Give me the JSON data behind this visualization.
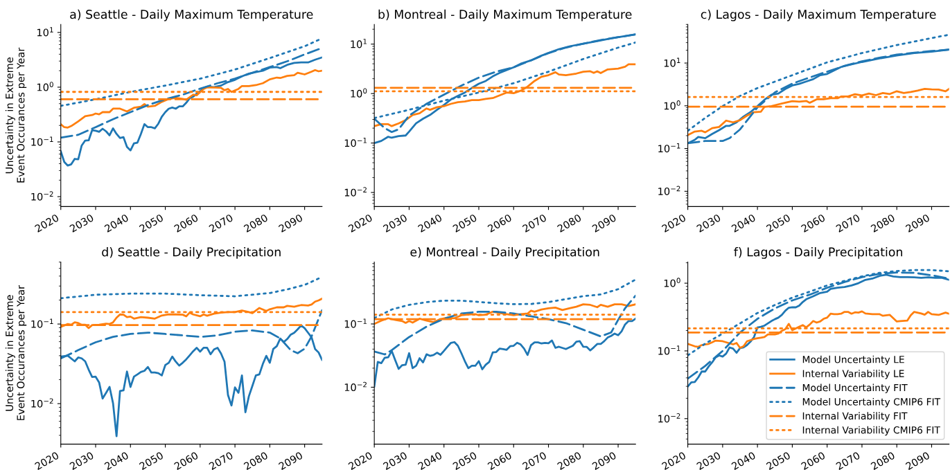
{
  "chart_data": [
    {
      "type": "line",
      "title": "a) Seattle - Daily Maximum Temperature",
      "ylabel": "Uncertainty in Extreme\nEvent Occurances per Year",
      "log": true,
      "xlim": [
        2020,
        2095
      ],
      "xticks": [
        2020,
        2030,
        2040,
        2050,
        2060,
        2070,
        2080,
        2090
      ],
      "ylim": [
        0.0066,
        14
      ],
      "yticks": [
        {
          "value": 0.01,
          "label": "10$^{−2}$"
        },
        {
          "value": 0.1,
          "label": "10$^{−1}$"
        },
        {
          "value": 1,
          "label": "10$^{0}$"
        },
        {
          "value": 10,
          "label": "10$^{1}$"
        }
      ],
      "series": [
        {
          "color": "#1f77b4",
          "line_style": "solid",
          "x": [
            2020,
            2021,
            2022,
            2023,
            2024,
            2025,
            2026,
            2027,
            2028,
            2029,
            2030,
            2031,
            2032,
            2033,
            2034,
            2035,
            2036,
            2037,
            2038,
            2039,
            2040,
            2041,
            2042,
            2043,
            2044,
            2045,
            2046,
            2047,
            2048,
            2049,
            2050,
            2051,
            2052,
            2053,
            2054,
            2055,
            2056,
            2057,
            2058,
            2059,
            2060,
            2061,
            2062,
            2064,
            2066,
            2068,
            2070,
            2072,
            2074,
            2076,
            2078,
            2080,
            2082,
            2083,
            2085,
            2087,
            2089,
            2091,
            2093,
            2095
          ],
          "values": [
            0.067,
            0.043,
            0.037,
            0.039,
            0.049,
            0.048,
            0.086,
            0.106,
            0.107,
            0.164,
            0.16,
            0.153,
            0.174,
            0.156,
            0.132,
            0.177,
            0.14,
            0.118,
            0.122,
            0.081,
            0.07,
            0.094,
            0.097,
            0.14,
            0.211,
            0.186,
            0.186,
            0.177,
            0.215,
            0.288,
            0.35,
            0.405,
            0.425,
            0.405,
            0.446,
            0.446,
            0.517,
            0.63,
            0.67,
            0.76,
            0.84,
            0.97,
            1.02,
            1.0,
            1.07,
            1.24,
            1.36,
            1.58,
            1.77,
            1.88,
            2.0,
            2.28,
            2.33,
            2.22,
            2.56,
            2.77,
            2.83,
            2.83,
            3.18,
            3.5
          ]
        },
        {
          "color": "#ff7f0e",
          "line_style": "solid",
          "x": [
            2020,
            2021,
            2022,
            2023,
            2025,
            2027,
            2029,
            2030,
            2031,
            2032,
            2034,
            2035,
            2037,
            2039,
            2041,
            2043,
            2044,
            2045,
            2047,
            2049,
            2051,
            2053,
            2055,
            2056,
            2058,
            2059,
            2061,
            2062,
            2064,
            2066,
            2067,
            2068,
            2069,
            2071,
            2072,
            2074,
            2076,
            2078,
            2080,
            2082,
            2083,
            2085,
            2087,
            2088,
            2090,
            2092,
            2093,
            2094,
            2095
          ],
          "values": [
            0.21,
            0.186,
            0.183,
            0.195,
            0.237,
            0.294,
            0.31,
            0.33,
            0.32,
            0.35,
            0.35,
            0.405,
            0.405,
            0.36,
            0.42,
            0.44,
            0.49,
            0.44,
            0.455,
            0.54,
            0.61,
            0.64,
            0.61,
            0.59,
            0.73,
            0.71,
            0.93,
            0.99,
            0.99,
            0.97,
            0.88,
            0.93,
            0.82,
            0.93,
            1.05,
            1.05,
            1.09,
            1.18,
            1.39,
            1.5,
            1.47,
            1.61,
            1.66,
            1.83,
            1.71,
            1.92,
            2.05,
            1.95,
            2.0
          ]
        },
        {
          "color": "#1f77b4",
          "line_style": "dashed",
          "x": [
            2020,
            2025,
            2030,
            2035,
            2040,
            2045,
            2050,
            2055,
            2060,
            2065,
            2070,
            2075,
            2080,
            2085,
            2090,
            2095
          ],
          "values": [
            0.12,
            0.135,
            0.186,
            0.26,
            0.35,
            0.47,
            0.6,
            0.73,
            0.94,
            1.18,
            1.43,
            1.83,
            2.33,
            2.97,
            3.97,
            5.2
          ]
        },
        {
          "color": "#1f77b4",
          "line_style": "dotted",
          "x": [
            2020,
            2030,
            2040,
            2050,
            2060,
            2070,
            2080,
            2090,
            2095
          ],
          "values": [
            0.455,
            0.6,
            0.82,
            1.07,
            1.43,
            2.1,
            3.4,
            5.6,
            7.8
          ]
        },
        {
          "color": "#ff7f0e",
          "line_style": "dashed",
          "x": [
            2020,
            2095
          ],
          "values": [
            0.6,
            0.6
          ]
        },
        {
          "color": "#ff7f0e",
          "line_style": "dotted",
          "x": [
            2020,
            2095
          ],
          "values": [
            0.82,
            0.82
          ]
        }
      ]
    },
    {
      "type": "line",
      "title": "b) Montreal - Daily Maximum Temperature",
      "log": true,
      "xlim": [
        2020,
        2095
      ],
      "xticks": [
        2020,
        2030,
        2040,
        2050,
        2060,
        2070,
        2080,
        2090
      ],
      "ylim": [
        0.0052,
        25
      ],
      "yticks": [
        {
          "value": 0.01,
          "label": "10$^{−2}$"
        },
        {
          "value": 0.1,
          "label": "10$^{−1}$"
        },
        {
          "value": 1,
          "label": "10$^{0}$"
        },
        {
          "value": 10,
          "label": "10$^{1}$"
        }
      ],
      "series": [
        {
          "color": "#1f77b4",
          "line_style": "solid",
          "x": [
            2020,
            2022,
            2024,
            2025,
            2027,
            2029,
            2030,
            2032,
            2034,
            2036,
            2038,
            2040,
            2042,
            2044,
            2046,
            2048,
            2050,
            2052,
            2054,
            2056,
            2058,
            2060,
            2062,
            2065,
            2068,
            2070,
            2073,
            2076,
            2080,
            2084,
            2088,
            2092,
            2095
          ],
          "values": [
            0.1,
            0.11,
            0.134,
            0.128,
            0.138,
            0.142,
            0.17,
            0.25,
            0.31,
            0.37,
            0.47,
            0.59,
            0.76,
            0.9,
            1.05,
            1.3,
            1.58,
            1.8,
            2.23,
            2.62,
            3.0,
            3.4,
            4.0,
            4.7,
            5.85,
            6.6,
            7.9,
            9.0,
            10.2,
            11.5,
            13.1,
            14.5,
            15.7
          ]
        },
        {
          "color": "#ff7f0e",
          "line_style": "solid",
          "x": [
            2020,
            2022,
            2024,
            2025,
            2027,
            2029,
            2031,
            2033,
            2035,
            2036,
            2038,
            2040,
            2042,
            2044,
            2046,
            2048,
            2050,
            2052,
            2054,
            2056,
            2058,
            2060,
            2062,
            2064,
            2066,
            2068,
            2070,
            2072,
            2073,
            2075,
            2078,
            2080,
            2082,
            2083,
            2084,
            2085,
            2087,
            2090,
            2092,
            2093,
            2095
          ],
          "values": [
            0.22,
            0.24,
            0.24,
            0.22,
            0.25,
            0.29,
            0.37,
            0.4,
            0.5,
            0.47,
            0.53,
            0.555,
            0.62,
            0.67,
            0.69,
            0.74,
            0.74,
            0.78,
            0.81,
            0.92,
            1.05,
            1.02,
            1.14,
            1.38,
            1.8,
            2.19,
            2.36,
            2.7,
            2.43,
            2.36,
            2.54,
            2.77,
            2.83,
            2.62,
            2.83,
            2.6,
            3.08,
            3.2,
            3.5,
            3.9,
            3.9
          ]
        },
        {
          "color": "#1f77b4",
          "line_style": "dashed",
          "x": [
            2020,
            2023,
            2025,
            2027,
            2030,
            2035,
            2040,
            2045,
            2050,
            2055,
            2060,
            2065,
            2070,
            2075,
            2080,
            2085,
            2090,
            2095
          ],
          "values": [
            0.31,
            0.2,
            0.167,
            0.19,
            0.36,
            0.62,
            0.95,
            1.45,
            2.1,
            2.77,
            3.4,
            4.7,
            6.6,
            8.5,
            10.2,
            12.1,
            13.8,
            15.7
          ]
        },
        {
          "color": "#1f77b4",
          "line_style": "dotted",
          "x": [
            2020,
            2030,
            2040,
            2050,
            2060,
            2070,
            2080,
            2090,
            2095
          ],
          "values": [
            0.32,
            0.47,
            0.72,
            1.05,
            1.62,
            2.77,
            5.0,
            8.5,
            10.8
          ]
        },
        {
          "color": "#ff7f0e",
          "line_style": "dashed",
          "x": [
            2020,
            2095
          ],
          "values": [
            1.31,
            1.31
          ]
        },
        {
          "color": "#ff7f0e",
          "line_style": "dotted",
          "x": [
            2020,
            2095
          ],
          "values": [
            1.11,
            1.11
          ]
        }
      ]
    },
    {
      "type": "line",
      "title": "c) Lagos - Daily Maximum Temperature",
      "log": true,
      "xlim": [
        2020,
        2095
      ],
      "xticks": [
        2020,
        2030,
        2040,
        2050,
        2060,
        2070,
        2080,
        2090
      ],
      "ylim": [
        0.0044,
        80
      ],
      "yticks": [
        {
          "value": 0.01,
          "label": "10$^{−2}$"
        },
        {
          "value": 0.1,
          "label": "10$^{−1}$"
        },
        {
          "value": 1,
          "label": "10$^{0}$"
        },
        {
          "value": 10,
          "label": "10$^{1}$"
        }
      ],
      "series": [
        {
          "color": "#1f77b4",
          "line_style": "solid",
          "x": [
            2020,
            2022,
            2023,
            2025,
            2027,
            2029,
            2031,
            2032,
            2034,
            2036,
            2038,
            2040,
            2042,
            2044,
            2046,
            2048,
            2050,
            2052,
            2054,
            2056,
            2058,
            2060,
            2062,
            2064,
            2066,
            2070,
            2075,
            2080,
            2085,
            2090,
            2095
          ],
          "values": [
            0.133,
            0.16,
            0.186,
            0.175,
            0.22,
            0.27,
            0.34,
            0.34,
            0.41,
            0.56,
            0.71,
            0.98,
            1.38,
            1.82,
            1.93,
            2.48,
            2.99,
            3.26,
            3.7,
            4.2,
            5.2,
            5.57,
            6.7,
            8.1,
            8.9,
            10.6,
            12.8,
            15.1,
            17.1,
            18.4,
            20.6
          ]
        },
        {
          "color": "#ff7f0e",
          "line_style": "solid",
          "x": [
            2020,
            2022,
            2024,
            2025,
            2027,
            2029,
            2031,
            2033,
            2035,
            2037,
            2039,
            2041,
            2042,
            2044,
            2046,
            2048,
            2050,
            2052,
            2054,
            2055,
            2057,
            2059,
            2061,
            2063,
            2064,
            2066,
            2068,
            2070,
            2072,
            2074,
            2076,
            2078,
            2080,
            2082,
            2084,
            2086,
            2088,
            2090,
            2092,
            2094,
            2095
          ],
          "values": [
            0.206,
            0.25,
            0.26,
            0.24,
            0.3,
            0.32,
            0.45,
            0.41,
            0.46,
            0.59,
            0.71,
            0.73,
            0.94,
            0.98,
            1.08,
            1.18,
            1.28,
            1.25,
            1.3,
            1.18,
            1.42,
            1.42,
            1.5,
            1.5,
            1.65,
            1.65,
            1.86,
            1.75,
            1.93,
            1.77,
            1.99,
            1.89,
            2.19,
            1.99,
            2.1,
            2.27,
            2.48,
            2.42,
            2.39,
            2.19,
            2.48
          ]
        },
        {
          "color": "#1f77b4",
          "line_style": "dashed",
          "x": [
            2020,
            2025,
            2030,
            2032,
            2035,
            2040,
            2045,
            2050,
            2055,
            2060,
            2065,
            2070,
            2075,
            2080,
            2085,
            2090,
            2095
          ],
          "values": [
            0.133,
            0.15,
            0.15,
            0.175,
            0.28,
            0.92,
            2.06,
            3.3,
            4.6,
            6.3,
            8.6,
            11.0,
            13.3,
            15.7,
            17.5,
            19.1,
            20.6
          ]
        },
        {
          "color": "#1f77b4",
          "line_style": "dotted",
          "x": [
            2020,
            2025,
            2030,
            2035,
            2040,
            2050,
            2060,
            2070,
            2080,
            2090,
            2095
          ],
          "values": [
            0.26,
            0.52,
            0.98,
            1.7,
            2.6,
            5.2,
            10.4,
            17.1,
            26.4,
            38.4,
            46
          ]
        },
        {
          "color": "#ff7f0e",
          "line_style": "dashed",
          "x": [
            2020,
            2095
          ],
          "values": [
            0.95,
            0.95
          ]
        },
        {
          "color": "#ff7f0e",
          "line_style": "dotted",
          "x": [
            2020,
            2095
          ],
          "values": [
            1.6,
            1.6
          ]
        }
      ]
    },
    {
      "type": "line",
      "title": "d) Seattle - Daily Precipitation",
      "ylabel": "Uncertainty in Extreme\nEvent Occurances per Year",
      "log": true,
      "xlim": [
        2020,
        2095
      ],
      "xticks": [
        2020,
        2030,
        2040,
        2050,
        2060,
        2070,
        2080,
        2090
      ],
      "ylim": [
        0.0031,
        0.6
      ],
      "yticks": [
        {
          "value": 0.01,
          "label": "10$^{−2}$"
        },
        {
          "value": 0.1,
          "label": "10$^{−1}$"
        }
      ],
      "series": [
        {
          "color": "#1f77b4",
          "line_style": "solid",
          "x": [
            2020,
            2022,
            2024,
            2025,
            2026,
            2027,
            2028,
            2029,
            2030,
            2031,
            2032,
            2033,
            2034,
            2035,
            2036,
            2037,
            2038,
            2039,
            2040,
            2041,
            2042,
            2043,
            2044,
            2045,
            2046,
            2047,
            2048,
            2049,
            2050,
            2051,
            2052,
            2053,
            2054,
            2055,
            2056,
            2057,
            2058,
            2059,
            2060,
            2061,
            2062,
            2063,
            2064,
            2065,
            2066,
            2067,
            2068,
            2069,
            2070,
            2071,
            2072,
            2073,
            2074,
            2075,
            2076,
            2077,
            2078,
            2079,
            2080,
            2081,
            2082,
            2083,
            2084,
            2085,
            2086,
            2087,
            2088,
            2089,
            2090,
            2091,
            2092,
            2093,
            2094,
            2095
          ],
          "values": [
            0.039,
            0.04,
            0.034,
            0.038,
            0.037,
            0.034,
            0.0267,
            0.0216,
            0.0218,
            0.0185,
            0.0116,
            0.0137,
            0.0162,
            0.0101,
            0.0039,
            0.0144,
            0.0147,
            0.0253,
            0.0162,
            0.0218,
            0.0233,
            0.025,
            0.0258,
            0.0289,
            0.0246,
            0.0246,
            0.0241,
            0.0226,
            0.0305,
            0.0326,
            0.039,
            0.0337,
            0.0301,
            0.0326,
            0.036,
            0.0404,
            0.0455,
            0.0503,
            0.045,
            0.0503,
            0.0503,
            0.0417,
            0.048,
            0.0503,
            0.0426,
            0.0337,
            0.0128,
            0.0095,
            0.016,
            0.0137,
            0.0226,
            0.0078,
            0.0124,
            0.0167,
            0.0226,
            0.0233,
            0.0315,
            0.0398,
            0.0326,
            0.0486,
            0.0527,
            0.0657,
            0.0594,
            0.0648,
            0.0736,
            0.0776,
            0.0858,
            0.096,
            0.0887,
            0.0776,
            0.0679,
            0.0486,
            0.044,
            0.0355
          ]
        },
        {
          "color": "#ff7f0e",
          "line_style": "solid",
          "x": [
            2020,
            2022,
            2023,
            2024,
            2025,
            2026,
            2027,
            2028,
            2029,
            2031,
            2033,
            2034,
            2035,
            2036,
            2037,
            2038,
            2039,
            2040,
            2041,
            2043,
            2045,
            2047,
            2049,
            2051,
            2053,
            2055,
            2056,
            2057,
            2058,
            2060,
            2061,
            2062,
            2064,
            2066,
            2068,
            2070,
            2072,
            2074,
            2075,
            2077,
            2079,
            2080,
            2082,
            2084,
            2085,
            2087,
            2088,
            2089,
            2091,
            2092,
            2093,
            2094,
            2095
          ],
          "values": [
            0.092,
            0.1,
            0.098,
            0.105,
            0.103,
            0.098,
            0.098,
            0.089,
            0.097,
            0.098,
            0.101,
            0.1,
            0.105,
            0.12,
            0.132,
            0.131,
            0.122,
            0.124,
            0.117,
            0.122,
            0.12,
            0.117,
            0.128,
            0.132,
            0.132,
            0.131,
            0.125,
            0.139,
            0.132,
            0.125,
            0.132,
            0.127,
            0.135,
            0.139,
            0.141,
            0.141,
            0.148,
            0.141,
            0.137,
            0.159,
            0.146,
            0.153,
            0.162,
            0.162,
            0.169,
            0.165,
            0.169,
            0.173,
            0.171,
            0.176,
            0.191,
            0.198,
            0.208
          ]
        },
        {
          "color": "#1f77b4",
          "line_style": "dashed",
          "x": [
            2020,
            2025,
            2030,
            2035,
            2040,
            2045,
            2050,
            2055,
            2060,
            2065,
            2070,
            2075,
            2080,
            2083,
            2086,
            2088,
            2090,
            2092,
            2095
          ],
          "values": [
            0.037,
            0.047,
            0.059,
            0.069,
            0.075,
            0.078,
            0.075,
            0.072,
            0.069,
            0.072,
            0.08,
            0.083,
            0.078,
            0.066,
            0.047,
            0.043,
            0.049,
            0.07,
            0.149
          ]
        },
        {
          "color": "#1f77b4",
          "line_style": "dotted",
          "x": [
            2020,
            2030,
            2040,
            2050,
            2060,
            2070,
            2080,
            2085,
            2090,
            2095
          ],
          "values": [
            0.211,
            0.233,
            0.241,
            0.241,
            0.23,
            0.223,
            0.245,
            0.272,
            0.31,
            0.39
          ]
        },
        {
          "color": "#ff7f0e",
          "line_style": "dashed",
          "x": [
            2020,
            2095
          ],
          "values": [
            0.097,
            0.097
          ]
        },
        {
          "color": "#ff7f0e",
          "line_style": "dotted",
          "x": [
            2020,
            2095
          ],
          "values": [
            0.141,
            0.141
          ]
        }
      ]
    },
    {
      "type": "line",
      "title": "e) Montreal - Daily Precipitation",
      "log": true,
      "xlim": [
        2020,
        2095
      ],
      "xticks": [
        2020,
        2030,
        2040,
        2050,
        2060,
        2070,
        2080,
        2090
      ],
      "ylim": [
        0.00126,
        0.95
      ],
      "yticks": [
        {
          "value": 0.01,
          "label": "10$^{−2}$"
        },
        {
          "value": 0.1,
          "label": "10$^{−1}$"
        }
      ],
      "series": [
        {
          "color": "#1f77b4",
          "line_style": "solid",
          "x": [
            2020,
            2021,
            2022,
            2023,
            2024,
            2025,
            2026,
            2027,
            2028,
            2029,
            2030,
            2031,
            2032,
            2033,
            2034,
            2035,
            2036,
            2037,
            2038,
            2039,
            2040,
            2041,
            2042,
            2043,
            2044,
            2045,
            2046,
            2047,
            2048,
            2049,
            2050,
            2051,
            2052,
            2053,
            2054,
            2055,
            2056,
            2057,
            2058,
            2059,
            2060,
            2061,
            2062,
            2063,
            2064,
            2065,
            2066,
            2067,
            2068,
            2069,
            2070,
            2071,
            2072,
            2073,
            2075,
            2077,
            2078,
            2079,
            2080,
            2081,
            2082,
            2083,
            2084,
            2085,
            2086,
            2087,
            2088,
            2089,
            2090,
            2091,
            2092,
            2093,
            2094,
            2095
          ],
          "values": [
            0.0103,
            0.0251,
            0.024,
            0.0292,
            0.0297,
            0.0375,
            0.0268,
            0.0195,
            0.0223,
            0.0227,
            0.0345,
            0.02,
            0.0218,
            0.0287,
            0.0247,
            0.0331,
            0.0313,
            0.0323,
            0.0351,
            0.0326,
            0.0375,
            0.0436,
            0.0503,
            0.0516,
            0.0452,
            0.0345,
            0.0258,
            0.02,
            0.0218,
            0.0218,
            0.0258,
            0.0192,
            0.0227,
            0.0251,
            0.0354,
            0.036,
            0.0408,
            0.0401,
            0.0391,
            0.0444,
            0.0452,
            0.0503,
            0.0475,
            0.0408,
            0.0323,
            0.0463,
            0.0512,
            0.0512,
            0.0491,
            0.0503,
            0.0495,
            0.0547,
            0.0419,
            0.0436,
            0.0401,
            0.0452,
            0.0525,
            0.0534,
            0.0436,
            0.0433,
            0.0382,
            0.0426,
            0.0482,
            0.0482,
            0.0534,
            0.061,
            0.0647,
            0.0704,
            0.0663,
            0.0765,
            0.0983,
            0.111,
            0.111,
            0.121
          ]
        },
        {
          "color": "#ff7f0e",
          "line_style": "solid",
          "x": [
            2020,
            2022,
            2024,
            2026,
            2028,
            2029,
            2030,
            2031,
            2033,
            2035,
            2037,
            2039,
            2041,
            2043,
            2045,
            2047,
            2049,
            2050,
            2052,
            2054,
            2056,
            2058,
            2060,
            2062,
            2064,
            2065,
            2066,
            2068,
            2070,
            2072,
            2074,
            2076,
            2078,
            2080,
            2082,
            2084,
            2085,
            2087,
            2089,
            2091,
            2093,
            2095
          ],
          "values": [
            0.1,
            0.113,
            0.123,
            0.116,
            0.111,
            0.104,
            0.111,
            0.105,
            0.121,
            0.113,
            0.107,
            0.119,
            0.126,
            0.123,
            0.137,
            0.141,
            0.143,
            0.137,
            0.14,
            0.156,
            0.149,
            0.143,
            0.137,
            0.143,
            0.146,
            0.162,
            0.156,
            0.169,
            0.177,
            0.181,
            0.166,
            0.177,
            0.187,
            0.204,
            0.2,
            0.184,
            0.2,
            0.187,
            0.204,
            0.204,
            0.192,
            0.204
          ]
        },
        {
          "color": "#1f77b4",
          "line_style": "dashed",
          "x": [
            2020,
            2023,
            2025,
            2030,
            2035,
            2040,
            2045,
            2050,
            2055,
            2060,
            2065,
            2070,
            2075,
            2080,
            2085,
            2088,
            2090,
            2092,
            2095
          ],
          "values": [
            0.0366,
            0.033,
            0.0385,
            0.062,
            0.0905,
            0.121,
            0.146,
            0.156,
            0.156,
            0.146,
            0.132,
            0.119,
            0.103,
            0.081,
            0.0636,
            0.0734,
            0.116,
            0.177,
            0.28
          ]
        },
        {
          "color": "#1f77b4",
          "line_style": "dotted",
          "x": [
            2020,
            2025,
            2030,
            2035,
            2040,
            2045,
            2050,
            2055,
            2060,
            2065,
            2070,
            2075,
            2080,
            2085,
            2090,
            2095
          ],
          "values": [
            0.124,
            0.169,
            0.2,
            0.221,
            0.233,
            0.233,
            0.223,
            0.212,
            0.205,
            0.207,
            0.221,
            0.247,
            0.275,
            0.292,
            0.354,
            0.502
          ]
        },
        {
          "color": "#ff7f0e",
          "line_style": "dashed",
          "x": [
            2020,
            2095
          ],
          "values": [
            0.119,
            0.119
          ]
        },
        {
          "color": "#ff7f0e",
          "line_style": "dotted",
          "x": [
            2020,
            2095
          ],
          "values": [
            0.14,
            0.14
          ]
        }
      ]
    },
    {
      "type": "line",
      "title": "f) Lagos - Daily Precipitation",
      "log": true,
      "legend": "bottom right",
      "xlim": [
        2020,
        2095
      ],
      "xticks": [
        2020,
        2030,
        2040,
        2050,
        2060,
        2070,
        2080,
        2090
      ],
      "ylim": [
        0.0042,
        2.05
      ],
      "yticks": [
        {
          "value": 0.01,
          "label": "10$^{−2}$"
        },
        {
          "value": 0.1,
          "label": "10$^{−1}$"
        },
        {
          "value": 1,
          "label": "10$^{0}$"
        }
      ],
      "series": [
        {
          "name": "Model Uncertainty LE",
          "color": "#1f77b4",
          "line_style": "solid",
          "x": [
            2020,
            2021,
            2022,
            2023,
            2024,
            2025,
            2026,
            2027,
            2028,
            2029,
            2030,
            2031,
            2032,
            2033,
            2034,
            2035,
            2036,
            2037,
            2038,
            2039,
            2040,
            2041,
            2042,
            2043,
            2044,
            2045,
            2046,
            2047,
            2048,
            2049,
            2050,
            2051,
            2052,
            2053,
            2054,
            2056,
            2058,
            2060,
            2061,
            2063,
            2065,
            2067,
            2069,
            2071,
            2073,
            2075,
            2077,
            2079,
            2081,
            2083,
            2085,
            2087,
            2089,
            2091,
            2093,
            2095
          ],
          "values": [
            0.0298,
            0.0343,
            0.0348,
            0.0406,
            0.0496,
            0.0496,
            0.059,
            0.0678,
            0.0805,
            0.0858,
            0.0825,
            0.0911,
            0.1125,
            0.108,
            0.094,
            0.11,
            0.1125,
            0.122,
            0.137,
            0.16,
            0.222,
            0.227,
            0.236,
            0.255,
            0.276,
            0.294,
            0.31,
            0.34,
            0.392,
            0.434,
            0.44,
            0.44,
            0.466,
            0.527,
            0.579,
            0.641,
            0.715,
            0.749,
            0.823,
            0.856,
            0.876,
            0.925,
            1.0,
            1.12,
            1.17,
            1.28,
            1.33,
            1.26,
            1.23,
            1.23,
            1.22,
            1.2,
            1.22,
            1.2,
            1.2,
            1.12
          ]
        },
        {
          "name": "Internal Variability LE",
          "color": "#ff7f0e",
          "line_style": "solid",
          "x": [
            2020,
            2022,
            2023,
            2024,
            2026,
            2027,
            2028,
            2030,
            2031,
            2033,
            2034,
            2035,
            2036,
            2037,
            2039,
            2040,
            2041,
            2042,
            2043,
            2045,
            2046,
            2047,
            2048,
            2049,
            2050,
            2052,
            2053,
            2054,
            2055,
            2056,
            2057,
            2058,
            2059,
            2060,
            2061,
            2062,
            2063,
            2064,
            2065,
            2066,
            2067,
            2068,
            2069,
            2070,
            2071,
            2073,
            2075,
            2076,
            2078,
            2080,
            2081,
            2083,
            2084,
            2085,
            2087,
            2088,
            2089,
            2090,
            2092,
            2094,
            2095
          ],
          "values": [
            0.127,
            0.117,
            0.115,
            0.122,
            0.127,
            0.134,
            0.142,
            0.139,
            0.134,
            0.125,
            0.131,
            0.111,
            0.117,
            0.139,
            0.15,
            0.154,
            0.157,
            0.16,
            0.175,
            0.175,
            0.18,
            0.198,
            0.21,
            0.251,
            0.202,
            0.227,
            0.24,
            0.223,
            0.245,
            0.276,
            0.262,
            0.272,
            0.298,
            0.31,
            0.354,
            0.349,
            0.349,
            0.354,
            0.377,
            0.377,
            0.354,
            0.371,
            0.368,
            0.383,
            0.357,
            0.349,
            0.349,
            0.33,
            0.34,
            0.272,
            0.276,
            0.28,
            0.335,
            0.377,
            0.357,
            0.343,
            0.377,
            0.349,
            0.34,
            0.368,
            0.354
          ]
        },
        {
          "name": "Model Uncertainty FIT",
          "color": "#1f77b4",
          "line_style": "dashed",
          "x": [
            2020,
            2025,
            2030,
            2035,
            2040,
            2045,
            2050,
            2055,
            2060,
            2065,
            2070,
            2075,
            2080,
            2085,
            2090,
            2095
          ],
          "values": [
            0.039,
            0.06,
            0.1,
            0.187,
            0.298,
            0.424,
            0.557,
            0.677,
            0.856,
            1.04,
            1.23,
            1.37,
            1.44,
            1.42,
            1.31,
            1.17
          ]
        },
        {
          "name": "Model Uncertainty CMIP6 FIT",
          "color": "#1f77b4",
          "line_style": "dotted",
          "x": [
            2020,
            2025,
            2030,
            2035,
            2040,
            2045,
            2050,
            2055,
            2060,
            2065,
            2070,
            2075,
            2080,
            2085,
            2090,
            2095
          ],
          "values": [
            0.086,
            0.128,
            0.18,
            0.255,
            0.363,
            0.476,
            0.612,
            0.749,
            0.925,
            1.08,
            1.26,
            1.42,
            1.51,
            1.56,
            1.56,
            1.5
          ]
        },
        {
          "name": "Internal Variability FIT",
          "color": "#ff7f0e",
          "line_style": "dashed",
          "x": [
            2020,
            2095
          ],
          "values": [
            0.187,
            0.187
          ]
        },
        {
          "name": "Internal Variability CMIP6 FIT",
          "color": "#ff7f0e",
          "line_style": "dotted",
          "x": [
            2020,
            2095
          ],
          "values": [
            0.215,
            0.215
          ]
        }
      ]
    }
  ]
}
